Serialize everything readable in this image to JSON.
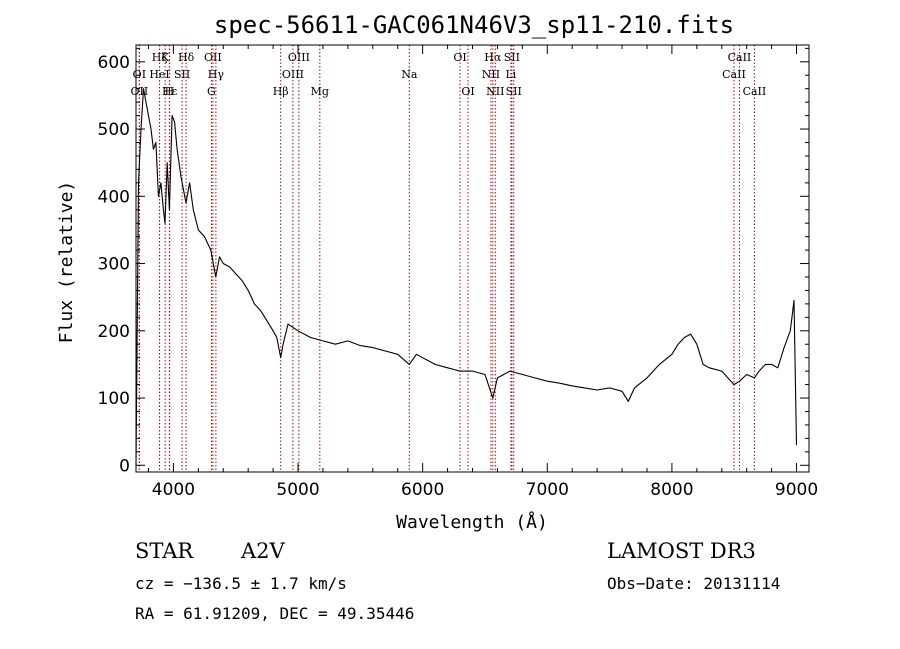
{
  "chart_data": {
    "type": "line",
    "title": "spec-56611-GAC061N46V3_sp11-210.fits",
    "xlabel": "Wavelength (Å)",
    "ylabel": "Flux (relative)",
    "xlim": [
      3700,
      9100
    ],
    "ylim": [
      -10,
      625
    ],
    "xticks": [
      4000,
      5000,
      6000,
      7000,
      8000,
      9000
    ],
    "yticks": [
      0,
      100,
      200,
      300,
      400,
      500,
      600
    ],
    "grid": false,
    "series": [
      {
        "name": "flux",
        "x": [
          3700,
          3720,
          3740,
          3760,
          3780,
          3800,
          3820,
          3840,
          3860,
          3880,
          3900,
          3920,
          3933,
          3950,
          3968,
          3990,
          4010,
          4030,
          4060,
          4101,
          4130,
          4160,
          4200,
          4250,
          4300,
          4340,
          4370,
          4400,
          4450,
          4500,
          4550,
          4600,
          4650,
          4700,
          4750,
          4800,
          4830,
          4861,
          4880,
          4920,
          4960,
          5000,
          5100,
          5200,
          5300,
          5400,
          5500,
          5600,
          5700,
          5800,
          5893,
          5950,
          6000,
          6100,
          6200,
          6300,
          6400,
          6500,
          6563,
          6600,
          6650,
          6700,
          6800,
          6900,
          7000,
          7100,
          7200,
          7300,
          7400,
          7500,
          7600,
          7650,
          7700,
          7800,
          7900,
          8000,
          8050,
          8100,
          8150,
          8200,
          8250,
          8300,
          8400,
          8498,
          8542,
          8600,
          8662,
          8700,
          8750,
          8800,
          8850,
          8900,
          8950,
          8980,
          9000
        ],
        "values": [
          0,
          420,
          500,
          560,
          540,
          520,
          500,
          470,
          480,
          400,
          420,
          380,
          360,
          450,
          380,
          520,
          510,
          470,
          430,
          390,
          420,
          380,
          350,
          340,
          320,
          280,
          310,
          300,
          295,
          285,
          275,
          260,
          240,
          230,
          215,
          200,
          190,
          160,
          180,
          210,
          205,
          200,
          190,
          185,
          180,
          185,
          178,
          175,
          170,
          165,
          150,
          165,
          160,
          150,
          145,
          140,
          140,
          135,
          100,
          130,
          135,
          140,
          135,
          130,
          125,
          122,
          118,
          115,
          112,
          115,
          110,
          95,
          115,
          130,
          150,
          165,
          180,
          190,
          195,
          180,
          150,
          145,
          140,
          120,
          125,
          135,
          130,
          140,
          150,
          150,
          145,
          175,
          200,
          245,
          30
        ]
      }
    ],
    "spectral_lines": [
      {
        "label": "Hζ",
        "wavelength": 3889,
        "row": 0
      },
      {
        "label": "K",
        "wavelength": 3934,
        "row": 0
      },
      {
        "label": "Hδ",
        "wavelength": 4102,
        "row": 0
      },
      {
        "label": "OII",
        "wavelength": 4317,
        "row": 0
      },
      {
        "label": "OIII",
        "wavelength": 5007,
        "row": 0
      },
      {
        "label": "OI",
        "wavelength": 6300,
        "row": 0
      },
      {
        "label": "Hα",
        "wavelength": 6563,
        "row": 0
      },
      {
        "label": "SII",
        "wavelength": 6716,
        "row": 0
      },
      {
        "label": "CaII",
        "wavelength": 8542,
        "row": 0
      },
      {
        "label": "OI",
        "wavelength": 3727,
        "row": 1
      },
      {
        "label": "HeI",
        "wavelength": 3889,
        "row": 1
      },
      {
        "label": "SII",
        "wavelength": 4070,
        "row": 1
      },
      {
        "label": "Hγ",
        "wavelength": 4341,
        "row": 1
      },
      {
        "label": "OIII",
        "wavelength": 4959,
        "row": 1
      },
      {
        "label": "Na",
        "wavelength": 5893,
        "row": 1
      },
      {
        "label": "NII",
        "wavelength": 6548,
        "row": 1
      },
      {
        "label": "Li",
        "wavelength": 6708,
        "row": 1
      },
      {
        "label": "CaII",
        "wavelength": 8498,
        "row": 1
      },
      {
        "label": "OII",
        "wavelength": 3727,
        "row": 2
      },
      {
        "label": "Hε",
        "wavelength": 3970,
        "row": 2
      },
      {
        "label": "H",
        "wavelength": 3968,
        "row": 2
      },
      {
        "label": "G",
        "wavelength": 4305,
        "row": 2
      },
      {
        "label": "Hβ",
        "wavelength": 4861,
        "row": 2
      },
      {
        "label": "Mg",
        "wavelength": 5175,
        "row": 2
      },
      {
        "label": "OI",
        "wavelength": 6364,
        "row": 2
      },
      {
        "label": "NII",
        "wavelength": 6583,
        "row": 2
      },
      {
        "label": "SII",
        "wavelength": 6731,
        "row": 2
      },
      {
        "label": "CaII",
        "wavelength": 8662,
        "row": 2
      }
    ]
  },
  "info": {
    "class": "STAR",
    "subclass": "A2V",
    "survey": "LAMOST DR3",
    "cz": "cz = −136.5 ± 1.7 km/s",
    "obs_date": "Obs−Date: 20131114",
    "coords": "RA =  61.91209, DEC =  49.35446"
  },
  "colors": {
    "line_marker": "#a01010",
    "spectrum": "#000000"
  }
}
